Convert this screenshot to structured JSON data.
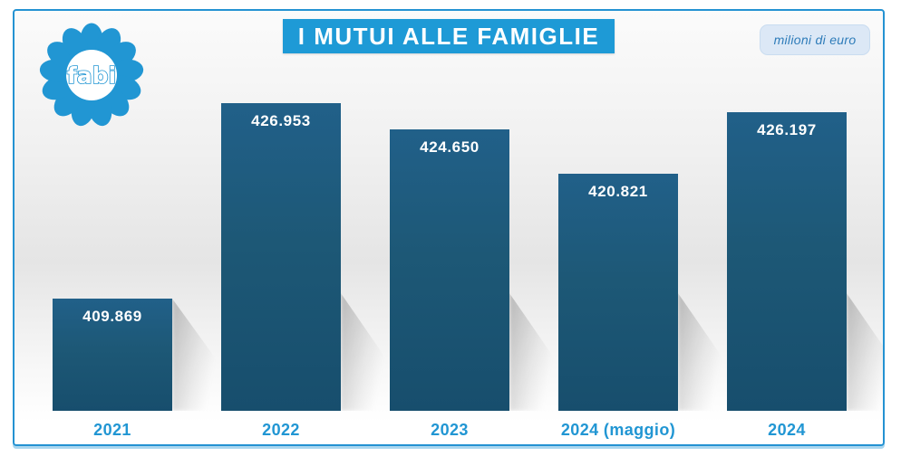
{
  "header": {
    "title": "I MUTUI ALLE FAMIGLIE",
    "unit_badge": "milioni di euro",
    "logo_text": "fabi"
  },
  "chart_data": {
    "type": "bar",
    "title": "I MUTUI ALLE FAMIGLIE",
    "unit": "milioni di euro",
    "categories": [
      "2021",
      "2022",
      "2023",
      "2024 (maggio)",
      "2024"
    ],
    "values": [
      409869,
      426953,
      424650,
      420821,
      426197
    ],
    "value_labels": [
      "409.869",
      "426.953",
      "424.650",
      "420.821",
      "426.197"
    ],
    "ylim": [
      400000,
      430000
    ],
    "grid": false,
    "legend": false,
    "bar_color": "#1d5876",
    "value_label_color": "#ffffff",
    "category_label_color": "#2196d3"
  },
  "colors": {
    "accent": "#2196d3",
    "frame_border": "#2492d2",
    "title_bg": "#1e9ad6",
    "badge_bg": "#dce8f6",
    "badge_text": "#2e7cb9",
    "bar": "#1d5876"
  }
}
